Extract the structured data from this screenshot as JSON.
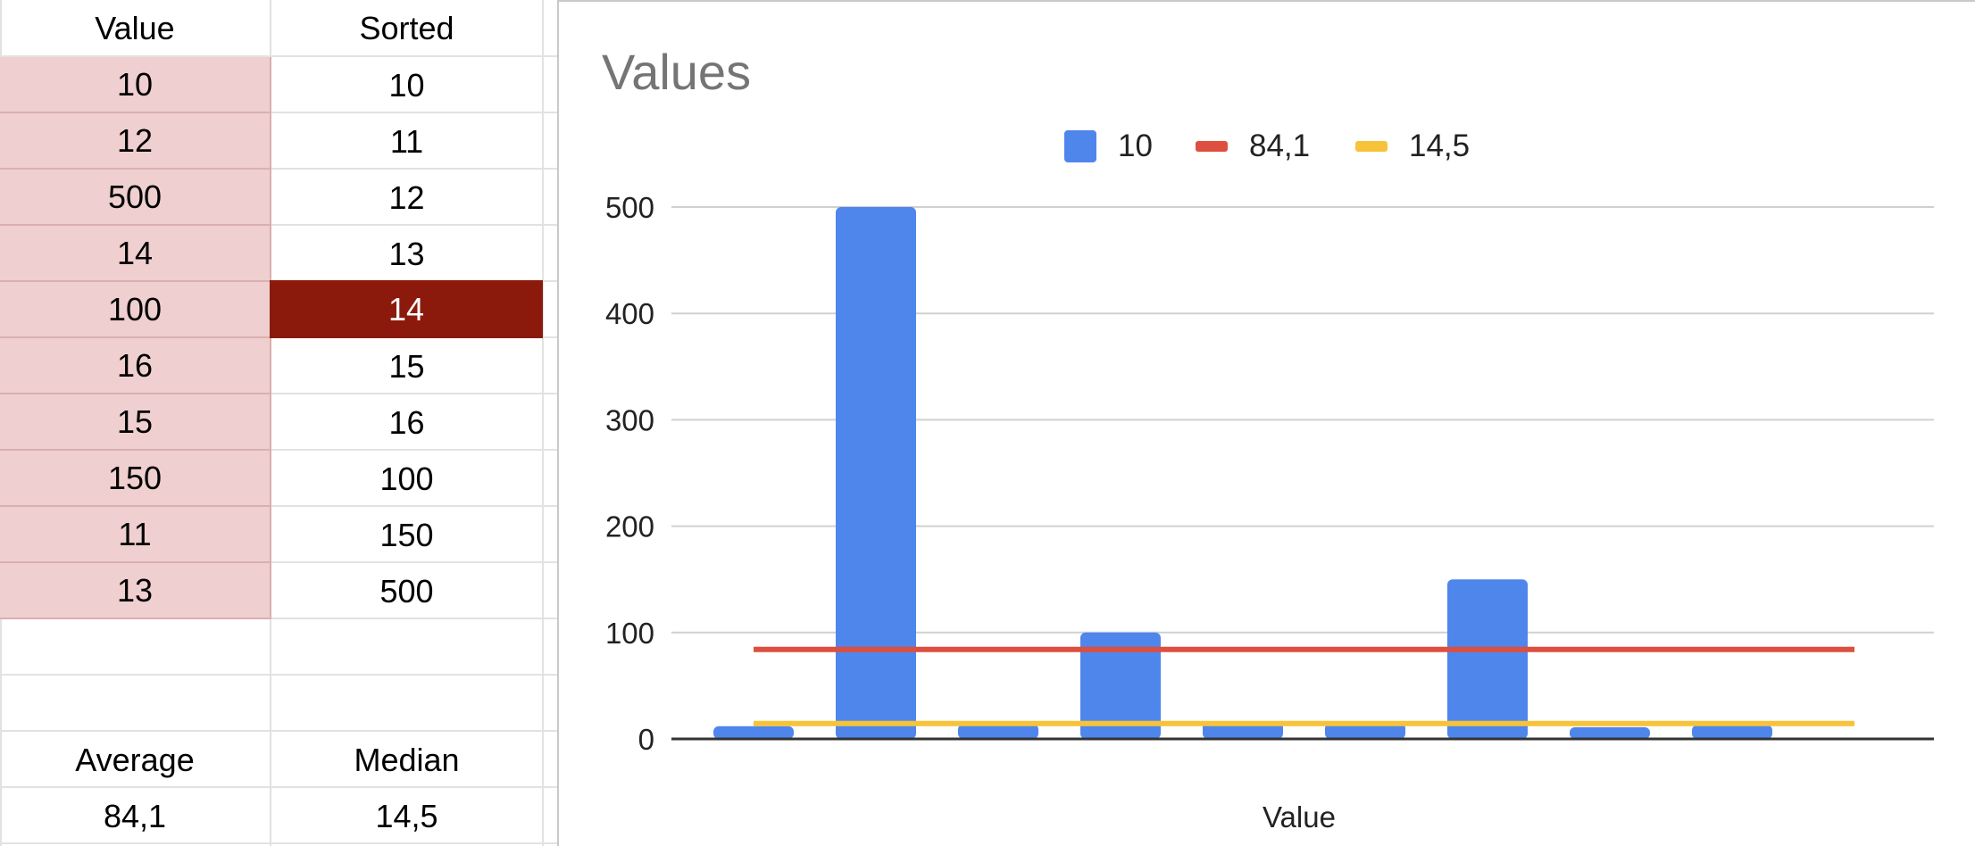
{
  "sheet": {
    "headers": [
      "Value",
      "Sorted"
    ],
    "values": [
      "10",
      "12",
      "500",
      "14",
      "100",
      "16",
      "15",
      "150",
      "11",
      "13"
    ],
    "sorted": [
      "10",
      "11",
      "12",
      "13",
      "14",
      "15",
      "16",
      "100",
      "150",
      "500"
    ],
    "selected_cell": "14",
    "stats_headers": [
      "Average",
      "Median"
    ],
    "stats_values": [
      "84,1",
      "14,5"
    ]
  },
  "colors": {
    "bar": "#4f86ec",
    "average_line": "#dd4f3e",
    "median_line": "#f6c33a",
    "value_cell_bg": "#efcfcf",
    "selected_cell_bg": "#8b1a0c"
  },
  "chart_data": {
    "type": "bar",
    "title": "Values",
    "xlabel": "Value",
    "ylabel": "",
    "ylim": [
      0,
      500
    ],
    "yticks": [
      0,
      100,
      200,
      300,
      400,
      500
    ],
    "grid": true,
    "legend_position": "top",
    "categories": [
      "",
      "",
      "",
      "",
      "",
      "",
      "",
      "",
      ""
    ],
    "series": [
      {
        "name": "10",
        "type": "bar",
        "values": [
          12,
          500,
          14,
          100,
          16,
          15,
          150,
          11,
          13
        ]
      },
      {
        "name": "84,1",
        "type": "line",
        "value": 84.1
      },
      {
        "name": "14,5",
        "type": "line",
        "value": 14.5
      }
    ]
  }
}
